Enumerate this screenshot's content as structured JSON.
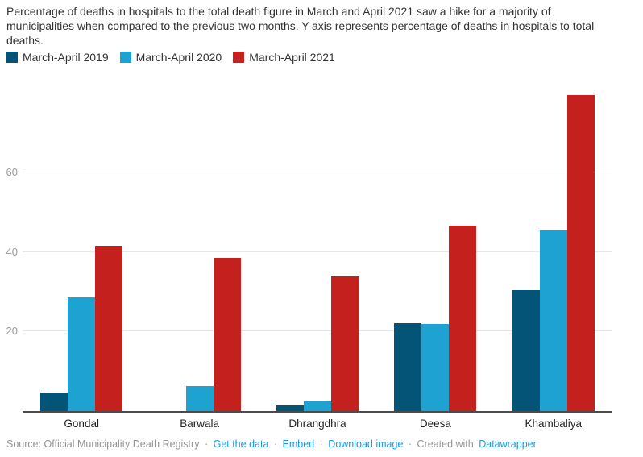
{
  "header": {
    "description": "Percentage of deaths in hospitals to the total death figure in March and April 2021 saw a hike for a majority of municipalities when compared to the previous two months. Y-axis represents percentage of deaths in hospitals to total deaths."
  },
  "chart_data": {
    "type": "bar",
    "categories": [
      "Gondal",
      "Barwala",
      "Dhrangdhra",
      "Deesa",
      "Khambaliya"
    ],
    "series": [
      {
        "name": "March-April 2019",
        "color": "#045477",
        "values": [
          4.7,
          0,
          1.5,
          22.0,
          30.3
        ]
      },
      {
        "name": "March-April 2020",
        "color": "#1ea2d1",
        "values": [
          28.5,
          6.2,
          2.5,
          21.9,
          45.6
        ]
      },
      {
        "name": "March-April 2021",
        "color": "#c4201e",
        "values": [
          41.5,
          38.5,
          33.8,
          46.5,
          79.3
        ]
      }
    ],
    "title": "",
    "xlabel": "",
    "ylabel": "Percentage of deaths in hospitals to total deaths",
    "yticks": [
      20,
      40,
      60
    ],
    "ylim": [
      0,
      80
    ],
    "grid": true,
    "legend_position": "top"
  },
  "footer": {
    "source_text": "Source: Official Municipality Death Registry",
    "links": [
      "Get the data",
      "Embed",
      "Download image"
    ],
    "created_with": "Created with",
    "creator_link": "Datawrapper",
    "separator": "·"
  },
  "colors": {
    "series_2019": "#045477",
    "series_2020": "#1ea2d1",
    "series_2021": "#c4201e",
    "gridline": "#e6e6e6",
    "axis_line": "#4b4b4b",
    "tick_label": "#9b9b9b",
    "link": "#1d9ad6",
    "text": "#333333"
  }
}
